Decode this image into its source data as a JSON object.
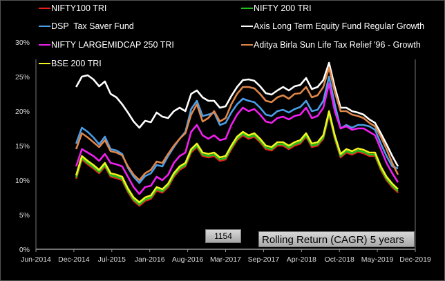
{
  "chart_data": {
    "type": "line",
    "title": "Rolling Return (CAGR) 5 years",
    "counter_label": "1154",
    "xlabel": "",
    "ylabel": "",
    "ylim": [
      0,
      30
    ],
    "yticks": [
      "0%",
      "5%",
      "10%",
      "15%",
      "20%",
      "25%",
      "30%"
    ],
    "xticks": [
      "Jun-2014",
      "Dec-2014",
      "Jul-2015",
      "Jan-2016",
      "Aug-2016",
      "Mar-2017",
      "Sep-2017",
      "Apr-2018",
      "Oct-2018",
      "May-2019",
      "Dec-2019"
    ],
    "xlim": [
      "2014-06",
      "2019-12"
    ],
    "grid": false,
    "legend_position": "top",
    "x": [
      "2015-01",
      "2015-02",
      "2015-03",
      "2015-04",
      "2015-05",
      "2015-06",
      "2015-07",
      "2015-08",
      "2015-09",
      "2015-10",
      "2015-11",
      "2015-12",
      "2016-01",
      "2016-02",
      "2016-03",
      "2016-04",
      "2016-05",
      "2016-06",
      "2016-07",
      "2016-08",
      "2016-09",
      "2016-10",
      "2016-11",
      "2016-12",
      "2017-01",
      "2017-02",
      "2017-03",
      "2017-04",
      "2017-05",
      "2017-06",
      "2017-07",
      "2017-08",
      "2017-09",
      "2017-10",
      "2017-11",
      "2017-12",
      "2018-01",
      "2018-02",
      "2018-03",
      "2018-04",
      "2018-05",
      "2018-06",
      "2018-07",
      "2018-08",
      "2018-09",
      "2018-10",
      "2018-11",
      "2018-12",
      "2019-01",
      "2019-02",
      "2019-03",
      "2019-04",
      "2019-05",
      "2019-06",
      "2019-07",
      "2019-08",
      "2019-09"
    ],
    "series": [
      {
        "name": "NIFTY100 TRI",
        "color": "#e8201c",
        "values": [
          10.2,
          13.0,
          12.3,
          11.7,
          11.0,
          12.0,
          10.5,
          10.3,
          10.0,
          8.3,
          7.0,
          6.3,
          7.0,
          7.3,
          8.5,
          8.2,
          9.0,
          10.5,
          11.5,
          12.0,
          14.0,
          14.8,
          13.5,
          13.3,
          13.5,
          12.8,
          13.0,
          14.5,
          15.8,
          16.5,
          16.0,
          16.3,
          15.5,
          14.5,
          14.3,
          15.0,
          15.0,
          14.5,
          15.0,
          15.3,
          16.3,
          14.8,
          15.0,
          16.0,
          19.5,
          16.0,
          13.3,
          14.0,
          13.7,
          14.1,
          13.9,
          13.5,
          13.5,
          11.5,
          10.0,
          9.0,
          8.2
        ]
      },
      {
        "name": "NIFTY 200 TRI",
        "color": "#22c01c",
        "values": [
          10.4,
          13.2,
          12.5,
          11.9,
          11.2,
          12.2,
          10.7,
          10.5,
          10.2,
          8.5,
          7.2,
          6.5,
          7.2,
          7.5,
          8.7,
          8.4,
          9.2,
          10.7,
          11.7,
          12.2,
          14.2,
          15.0,
          13.7,
          13.5,
          13.7,
          13.0,
          13.2,
          14.7,
          16.0,
          16.7,
          16.2,
          16.5,
          15.7,
          14.7,
          14.5,
          15.2,
          15.2,
          14.7,
          15.2,
          15.5,
          16.5,
          15.0,
          15.2,
          16.2,
          19.7,
          16.2,
          13.5,
          14.2,
          13.9,
          14.3,
          14.1,
          13.7,
          13.7,
          11.7,
          10.2,
          9.2,
          8.4
        ]
      },
      {
        "name": "DSP  Tax Saver Fund",
        "color": "#4a9ee8",
        "values": [
          15.3,
          17.6,
          17.0,
          16.2,
          15.2,
          16.3,
          14.5,
          14.3,
          13.8,
          11.8,
          10.5,
          9.6,
          10.6,
          11.0,
          12.2,
          12.0,
          13.5,
          14.8,
          16.0,
          17.0,
          20.3,
          21.5,
          19.3,
          19.5,
          19.8,
          18.0,
          18.3,
          19.8,
          21.0,
          21.8,
          21.5,
          21.3,
          20.5,
          19.5,
          19.3,
          20.0,
          20.2,
          19.8,
          20.3,
          20.6,
          21.5,
          20.0,
          20.2,
          21.5,
          25.0,
          21.0,
          17.5,
          18.0,
          17.6,
          18.0,
          18.0,
          17.8,
          17.3,
          15.3,
          13.5,
          12.0,
          11.7
        ]
      },
      {
        "name": "Axis Long Term Equity Fund Regular Growth",
        "color": "#ffffff",
        "values": [
          23.5,
          25.0,
          25.2,
          24.6,
          23.6,
          24.3,
          22.5,
          22.0,
          21.0,
          19.8,
          18.5,
          17.6,
          18.6,
          18.4,
          19.8,
          19.2,
          19.0,
          20.0,
          20.5,
          20.0,
          22.5,
          23.0,
          22.0,
          21.5,
          21.5,
          20.5,
          20.7,
          22.2,
          23.5,
          24.5,
          24.6,
          24.4,
          23.6,
          22.6,
          22.4,
          23.0,
          23.5,
          23.0,
          23.6,
          23.8,
          24.8,
          23.2,
          23.5,
          24.5,
          27.0,
          23.5,
          20.5,
          20.5,
          20.0,
          19.8,
          19.5,
          18.8,
          18.3,
          16.8,
          15.2,
          13.5,
          12.0
        ]
      },
      {
        "name": "NIFTY LARGEMIDCAP 250 TRI",
        "color": "#f020f0",
        "values": [
          12.0,
          14.5,
          14.0,
          13.5,
          12.8,
          13.8,
          12.5,
          12.3,
          12.0,
          10.5,
          9.0,
          8.0,
          9.0,
          9.2,
          10.5,
          10.0,
          10.8,
          12.5,
          13.5,
          14.0,
          17.0,
          18.0,
          16.5,
          16.0,
          16.5,
          15.8,
          16.0,
          18.0,
          19.5,
          20.5,
          20.0,
          20.3,
          19.5,
          18.5,
          18.3,
          19.0,
          19.2,
          18.8,
          19.3,
          19.5,
          20.5,
          19.0,
          19.3,
          20.5,
          24.0,
          20.0,
          17.5,
          17.8,
          17.3,
          17.5,
          17.5,
          17.0,
          16.5,
          14.5,
          12.5,
          11.0,
          9.7
        ]
      },
      {
        "name": "Aditya Birla Sun Life Tax Relief '96 - Growth",
        "color": "#e0874a",
        "values": [
          14.5,
          16.8,
          16.2,
          15.5,
          14.8,
          15.8,
          14.2,
          14.0,
          13.6,
          12.0,
          10.8,
          10.0,
          11.0,
          11.5,
          12.7,
          12.5,
          13.8,
          15.0,
          16.0,
          16.8,
          19.5,
          21.0,
          18.5,
          19.0,
          20.0,
          18.5,
          19.0,
          21.0,
          22.5,
          23.5,
          23.5,
          23.3,
          22.5,
          21.5,
          21.3,
          22.0,
          22.3,
          21.8,
          22.5,
          22.6,
          23.5,
          22.0,
          22.3,
          23.5,
          26.3,
          22.8,
          20.0,
          20.0,
          19.5,
          19.3,
          19.0,
          18.3,
          17.8,
          16.3,
          14.5,
          12.5,
          10.8
        ]
      },
      {
        "name": "BSE 200 TRI",
        "color": "#f4f420",
        "values": [
          10.7,
          13.5,
          12.8,
          12.2,
          11.5,
          12.5,
          11.0,
          10.8,
          10.5,
          8.8,
          7.5,
          6.8,
          7.5,
          7.8,
          9.0,
          8.7,
          9.5,
          11.0,
          12.0,
          12.5,
          14.5,
          15.3,
          14.0,
          13.8,
          14.0,
          13.3,
          13.5,
          15.0,
          16.3,
          17.0,
          16.5,
          16.8,
          16.0,
          15.0,
          14.8,
          15.5,
          15.5,
          15.0,
          15.5,
          15.8,
          16.8,
          15.3,
          15.5,
          16.5,
          20.0,
          16.5,
          13.8,
          14.5,
          14.2,
          14.6,
          14.4,
          14.0,
          14.0,
          12.0,
          10.5,
          9.5,
          8.7
        ]
      }
    ]
  }
}
